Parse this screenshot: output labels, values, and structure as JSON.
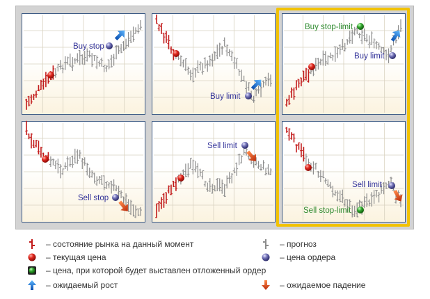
{
  "colors": {
    "history": "#c21a1a",
    "forecast": "#8c8c8c",
    "order_price": "#33339a",
    "trigger_price": "#2e8a2e",
    "rise_arrow": "#1e6fd8",
    "fall_arrow": "#d8501e",
    "highlight": "#f2c200"
  },
  "panels": [
    {
      "id": "buy-stop",
      "label": "Buy stop",
      "trend": "up"
    },
    {
      "id": "buy-limit",
      "label": "Buy limit",
      "trend": "up"
    },
    {
      "id": "buy-stop-limit",
      "label": "Buy stop-limit",
      "label2": "Buy limit",
      "trend": "up"
    },
    {
      "id": "sell-stop",
      "label": "Sell stop",
      "trend": "down"
    },
    {
      "id": "sell-limit",
      "label": "Sell limit",
      "trend": "down"
    },
    {
      "id": "sell-stop-limit",
      "label": "Sell stop-limit",
      "label2": "Sell limit",
      "trend": "down"
    }
  ],
  "legend": [
    {
      "icon": "history-bar-icon",
      "text": "– состояние рынка на данный момент"
    },
    {
      "icon": "forecast-bar-icon",
      "text": "– прогноз"
    },
    {
      "icon": "current-price-icon",
      "text": "– текущая цена"
    },
    {
      "icon": "order-price-icon",
      "text": "– цена ордера"
    },
    {
      "icon": "trigger-price-icon",
      "text": "– цена, при которой будет выставлен отложенный ордер"
    },
    {
      "icon": "rise-arrow-icon",
      "text": "– ожидаемый рост"
    },
    {
      "icon": "fall-arrow-icon",
      "text": "– ожидаемое падение"
    }
  ]
}
